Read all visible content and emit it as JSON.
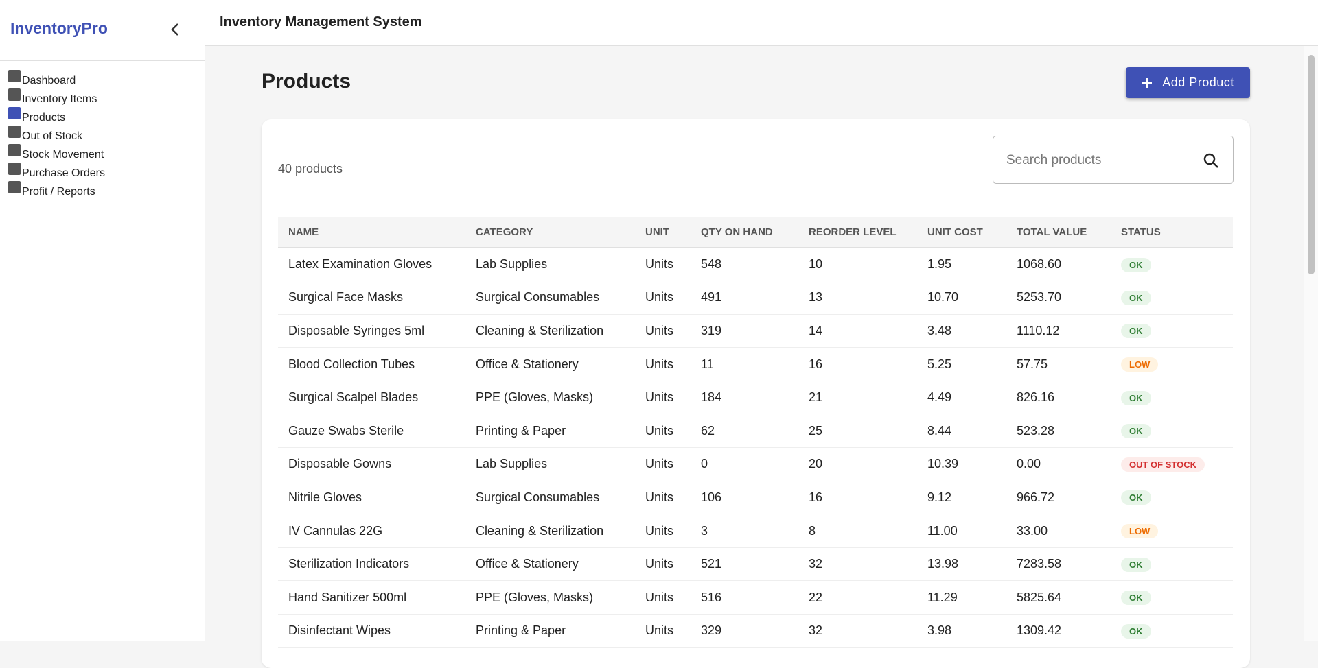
{
  "sidebar": {
    "brand": "InventoryPro",
    "active": 2,
    "nav": [
      "Dashboard",
      "Inventory Items",
      "Products",
      "Out of Stock",
      "Stock Movement",
      "Purchase Orders",
      "Profit / Reports"
    ]
  },
  "header": {
    "title": "Inventory Management System"
  },
  "page": {
    "title": "Products",
    "add_button": "Add Product",
    "count": "40 products",
    "search_placeholder": "Search products"
  },
  "table": {
    "columns": [
      "NAME",
      "CATEGORY",
      "UNIT",
      "QTY ON HAND",
      "REORDER LEVEL",
      "UNIT COST",
      "TOTAL VALUE",
      "STATUS"
    ],
    "rows": [
      [
        "Latex Examination Gloves",
        "Lab Supplies",
        "Units",
        "548",
        "10",
        "1.95",
        "1068.60",
        {
          "text": "OK",
          "color": "#2e7d32",
          "background": "#e8f5e9"
        }
      ],
      [
        "Surgical Face Masks",
        "Surgical Consumables",
        "Units",
        "491",
        "13",
        "10.70",
        "5253.70",
        {
          "text": "OK",
          "color": "#2e7d32",
          "background": "#e8f5e9"
        }
      ],
      [
        "Disposable Syringes 5ml",
        "Cleaning & Sterilization",
        "Units",
        "319",
        "14",
        "3.48",
        "1110.12",
        {
          "text": "OK",
          "color": "#2e7d32",
          "background": "#e8f5e9"
        }
      ],
      [
        "Blood Collection Tubes",
        "Office & Stationery",
        "Units",
        "11",
        "16",
        "5.25",
        "57.75",
        {
          "text": "LOW",
          "color": "#ed6c02",
          "background": "#fff3e0"
        }
      ],
      [
        "Surgical Scalpel Blades",
        "PPE (Gloves, Masks)",
        "Units",
        "184",
        "21",
        "4.49",
        "826.16",
        {
          "text": "OK",
          "color": "#2e7d32",
          "background": "#e8f5e9"
        }
      ],
      [
        "Gauze Swabs Sterile",
        "Printing & Paper",
        "Units",
        "62",
        "25",
        "8.44",
        "523.28",
        {
          "text": "OK",
          "color": "#2e7d32",
          "background": "#e8f5e9"
        }
      ],
      [
        "Disposable Gowns",
        "Lab Supplies",
        "Units",
        "0",
        "20",
        "10.39",
        "0.00",
        {
          "text": "OUT OF STOCK",
          "color": "#d32f2f",
          "background": "#fdecea"
        }
      ],
      [
        "Nitrile Gloves",
        "Surgical Consumables",
        "Units",
        "106",
        "16",
        "9.12",
        "966.72",
        {
          "text": "OK",
          "color": "#2e7d32",
          "background": "#e8f5e9"
        }
      ],
      [
        "IV Cannulas 22G",
        "Cleaning & Sterilization",
        "Units",
        "3",
        "8",
        "11.00",
        "33.00",
        {
          "text": "LOW",
          "color": "#ed6c02",
          "background": "#fff3e0"
        }
      ],
      [
        "Sterilization Indicators",
        "Office & Stationery",
        "Units",
        "521",
        "32",
        "13.98",
        "7283.58",
        {
          "text": "OK",
          "color": "#2e7d32",
          "background": "#e8f5e9"
        }
      ],
      [
        "Hand Sanitizer 500ml",
        "PPE (Gloves, Masks)",
        "Units",
        "516",
        "22",
        "11.29",
        "5825.64",
        {
          "text": "OK",
          "color": "#2e7d32",
          "background": "#e8f5e9"
        }
      ],
      [
        "Disinfectant Wipes",
        "Printing & Paper",
        "Units",
        "329",
        "32",
        "3.98",
        "1309.42",
        {
          "text": "OK",
          "color": "#2e7d32",
          "background": "#e8f5e9"
        }
      ]
    ]
  }
}
